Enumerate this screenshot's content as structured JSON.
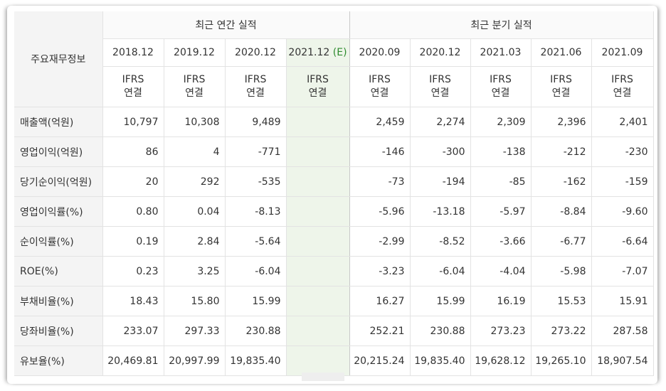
{
  "table": {
    "header_label": "주요재무정보",
    "group_annual": "최근 연간 실적",
    "group_quarterly": "최근 분기 실적",
    "periods": [
      "2018.12",
      "2019.12",
      "2020.12",
      "2021.12",
      "2020.09",
      "2020.12",
      "2021.03",
      "2021.06",
      "2021.09"
    ],
    "estimate_marker": "(E)",
    "ifrs_line1": "IFRS",
    "ifrs_line2": "연결",
    "rows": [
      {
        "label": "매출액(억원)",
        "values": [
          "10,797",
          "10,308",
          "9,489",
          "",
          "2,459",
          "2,274",
          "2,309",
          "2,396",
          "2,401"
        ]
      },
      {
        "label": "영업이익(억원)",
        "values": [
          "86",
          "4",
          "-771",
          "",
          "-146",
          "-300",
          "-138",
          "-212",
          "-230"
        ]
      },
      {
        "label": "당기순이익(억원)",
        "values": [
          "20",
          "292",
          "-535",
          "",
          "-73",
          "-194",
          "-85",
          "-162",
          "-159"
        ]
      },
      {
        "label": "영업이익률(%)",
        "values": [
          "0.80",
          "0.04",
          "-8.13",
          "",
          "-5.96",
          "-13.18",
          "-5.97",
          "-8.84",
          "-9.60"
        ]
      },
      {
        "label": "순이익률(%)",
        "values": [
          "0.19",
          "2.84",
          "-5.64",
          "",
          "-2.99",
          "-8.52",
          "-3.66",
          "-6.77",
          "-6.64"
        ]
      },
      {
        "label": "ROE(%)",
        "values": [
          "0.23",
          "3.25",
          "-6.04",
          "",
          "-3.23",
          "-6.04",
          "-4.04",
          "-5.98",
          "-7.07"
        ]
      },
      {
        "label": "부채비율(%)",
        "values": [
          "18.43",
          "15.80",
          "15.99",
          "",
          "16.27",
          "15.99",
          "16.19",
          "15.53",
          "15.91"
        ]
      },
      {
        "label": "당좌비율(%)",
        "values": [
          "233.07",
          "297.33",
          "230.88",
          "",
          "252.21",
          "230.88",
          "273.23",
          "273.22",
          "287.58"
        ]
      },
      {
        "label": "유보율(%)",
        "values": [
          "20,469.81",
          "20,997.99",
          "19,835.40",
          "",
          "20,215.24",
          "19,835.40",
          "19,628.12",
          "19,265.10",
          "18,907.54"
        ]
      }
    ]
  },
  "colors": {
    "negative": "#cc1111",
    "ifrs": "#f08a2c",
    "estimate_bg": "#eef5ea"
  }
}
